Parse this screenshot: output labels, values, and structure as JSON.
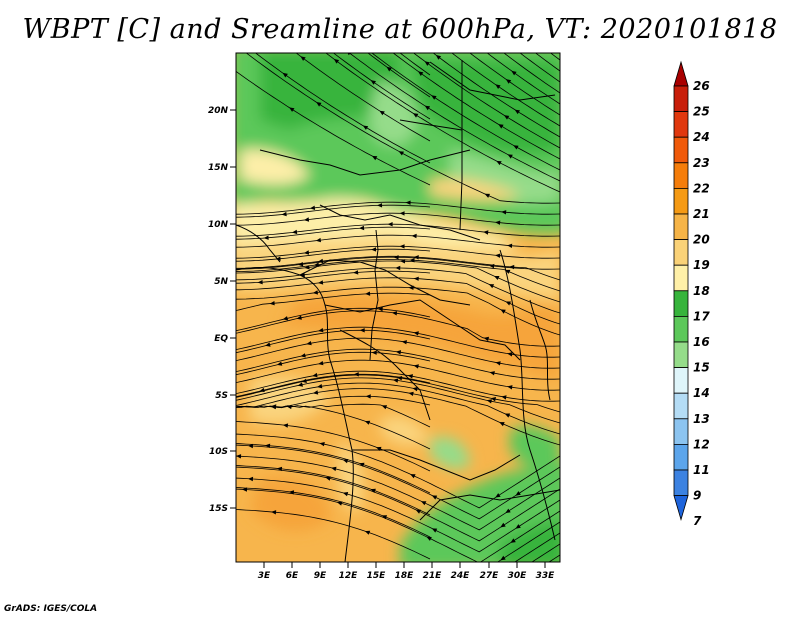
{
  "title": "WBPT [C] and Sreamline at 600hPa, VT: 2020101818",
  "footer": "GrADS: IGES/COLA",
  "map": {
    "lat_ticks": [
      "20N",
      "15N",
      "10N",
      "5N",
      "EQ",
      "5S",
      "10S",
      "15S"
    ],
    "lon_ticks": [
      "3E",
      "6E",
      "9E",
      "12E",
      "15E",
      "18E",
      "21E",
      "24E",
      "27E",
      "30E",
      "33E"
    ]
  },
  "colorbar": {
    "labels": [
      "26",
      "25",
      "24",
      "23",
      "22",
      "21",
      "20",
      "19",
      "18",
      "17",
      "16",
      "15",
      "14",
      "13",
      "12",
      "11",
      "9",
      "7"
    ],
    "colors": [
      "#a80000",
      "#c81e0a",
      "#e0380e",
      "#f05a0a",
      "#f57d0a",
      "#f59a14",
      "#f6b447",
      "#fad278",
      "#fff0a8",
      "#37b43c",
      "#5cc85a",
      "#95dc8a",
      "#dff5fa",
      "#b4dcf5",
      "#8cc4f0",
      "#5ca5eb",
      "#3c82e1",
      "#1e64dc"
    ]
  },
  "colors": {
    "orange": "#f7b54c",
    "light_orange": "#fad47e",
    "pale_yellow": "#fdeea8",
    "green": "#5cc85a",
    "light_green": "#95dc8a",
    "dark_green": "#37b43c"
  }
}
